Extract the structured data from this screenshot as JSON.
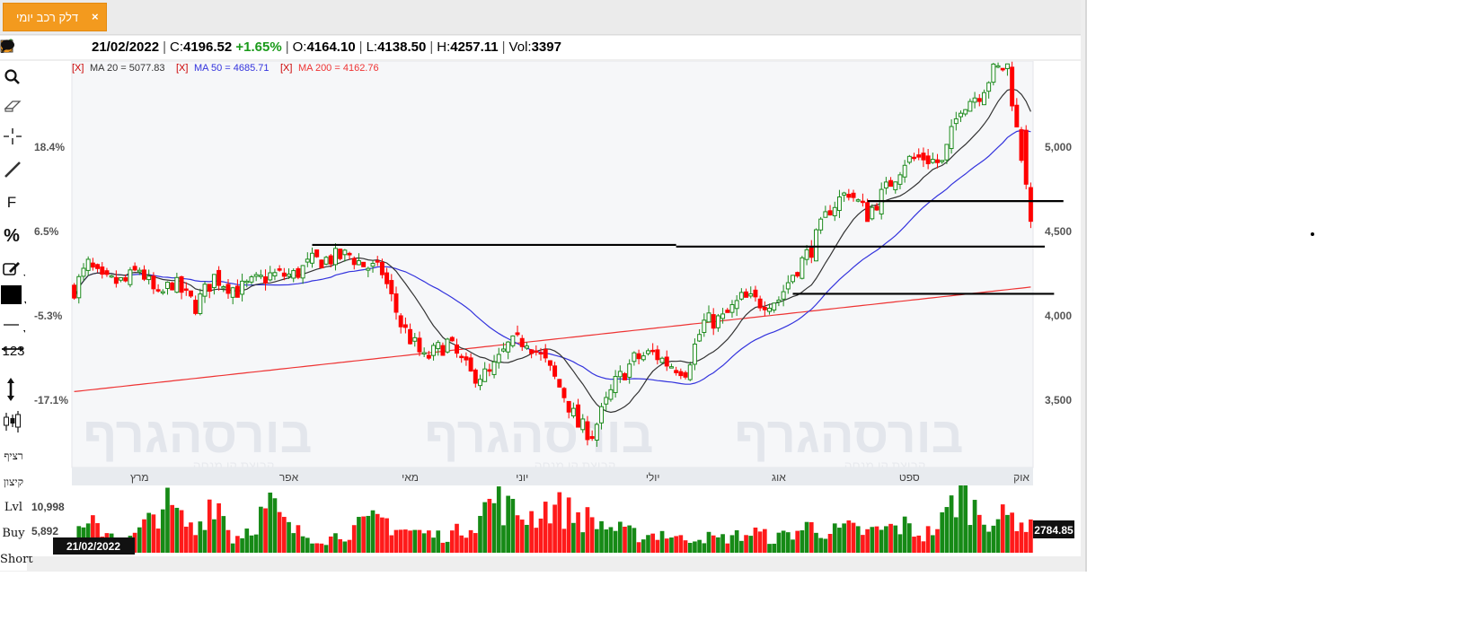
{
  "tab": {
    "label": "דלק רכב יומי",
    "close_symbol": "×"
  },
  "toolbar_icons": [
    "pencil-icon",
    "share-icon",
    "x-box-icon",
    "r-circle-icon",
    "target-icon",
    "chat-icon"
  ],
  "info": {
    "date": "21/02/2022",
    "close_label": "C:",
    "close": "4196.52",
    "change": "+1.65%",
    "open_label": "O:",
    "open": "4164.10",
    "low_label": "L:",
    "low": "4138.50",
    "high_label": "H:",
    "high": "4257.11",
    "vol_label": "Vol:",
    "vol": "3397"
  },
  "side_tools": {
    "numbers": "123",
    "continuous": "רציף",
    "extreme": "קיצון",
    "lvl": "Lvl",
    "buy": "Buy",
    "short": "Short"
  },
  "colors": {
    "up": "#1c8a1c",
    "down": "#ff0000",
    "ma20": "#333333",
    "ma50": "#3333dd",
    "ma200": "#ee3333",
    "accent": "#f39a1e"
  },
  "chart_data": {
    "type": "candlestick",
    "legend": [
      {
        "prefix": "[X]",
        "text": "MA 20 = 5077.83",
        "color": "#333333"
      },
      {
        "prefix": "[X]",
        "text": "MA 50 = 4685.71",
        "color": "#3333dd"
      },
      {
        "prefix": "[X]",
        "text": "MA 200 = 4162.76",
        "color": "#ee3333"
      }
    ],
    "price_ticks": [
      5000,
      4500,
      4000,
      3500
    ],
    "price_tick_labels": [
      "5,000",
      "4,500",
      "4,000",
      "3,500"
    ],
    "pct_ticks": [
      18.4,
      6.5,
      -5.3,
      -17.1
    ],
    "pct_tick_labels": [
      "18.4%",
      "6.5%",
      "-5.3%",
      "-17.1%"
    ],
    "ylim": [
      3100,
      5500
    ],
    "months": [
      {
        "label": "מרץ",
        "index": 14
      },
      {
        "label": "אפר",
        "index": 46
      },
      {
        "label": "מאי",
        "index": 72
      },
      {
        "label": "יוני",
        "index": 96
      },
      {
        "label": "יולי",
        "index": 124
      },
      {
        "label": "אוג",
        "index": 151
      },
      {
        "label": "ספט",
        "index": 179
      },
      {
        "label": "אוק",
        "index": 203
      }
    ],
    "horizontal_lines": [
      {
        "price": 4420,
        "from_index": 51,
        "to_index": 129
      },
      {
        "price": 4410,
        "from_index": 129,
        "to_index": 208
      },
      {
        "price": 4680,
        "from_index": 170,
        "to_index": 212
      },
      {
        "price": 4130,
        "from_index": 154,
        "to_index": 210
      }
    ],
    "volume_ticks": [
      "10,998",
      "5,892"
    ],
    "volume_last": "2784.85",
    "cursor_date": "21/02/2022",
    "watermark": "בורסהגרף",
    "watermark_sub": "קבוצת קו מנחה",
    "anchors": [
      [
        0,
        4160
      ],
      [
        3,
        4300
      ],
      [
        6,
        4200
      ],
      [
        11,
        4200
      ],
      [
        14,
        4280
      ],
      [
        18,
        4100
      ],
      [
        21,
        4200
      ],
      [
        26,
        4060
      ],
      [
        30,
        4230
      ],
      [
        35,
        4150
      ],
      [
        42,
        4240
      ],
      [
        47,
        4240
      ],
      [
        51,
        4320
      ],
      [
        55,
        4340
      ],
      [
        59,
        4360
      ],
      [
        62,
        4300
      ],
      [
        66,
        4260
      ],
      [
        70,
        3950
      ],
      [
        75,
        3740
      ],
      [
        80,
        3840
      ],
      [
        85,
        3650
      ],
      [
        89,
        3650
      ],
      [
        93,
        3820
      ],
      [
        97,
        3860
      ],
      [
        101,
        3720
      ],
      [
        105,
        3530
      ],
      [
        108,
        3350
      ],
      [
        111,
        3300
      ],
      [
        116,
        3600
      ],
      [
        120,
        3740
      ],
      [
        124,
        3780
      ],
      [
        127,
        3720
      ],
      [
        131,
        3680
      ],
      [
        135,
        3960
      ],
      [
        139,
        3980
      ],
      [
        143,
        4100
      ],
      [
        147,
        4080
      ],
      [
        151,
        4100
      ],
      [
        154,
        4250
      ],
      [
        158,
        4400
      ],
      [
        162,
        4640
      ],
      [
        166,
        4740
      ],
      [
        170,
        4600
      ],
      [
        174,
        4750
      ],
      [
        178,
        4920
      ],
      [
        182,
        4940
      ],
      [
        186,
        4900
      ],
      [
        190,
        5250
      ],
      [
        194,
        5320
      ],
      [
        197,
        5450
      ],
      [
        200,
        5480
      ],
      [
        202,
        5100
      ],
      [
        204,
        4800
      ],
      [
        205,
        4570
      ]
    ],
    "vol_anchors": [
      [
        0,
        2.5
      ],
      [
        4,
        4
      ],
      [
        8,
        3
      ],
      [
        12,
        2
      ],
      [
        16,
        4.5
      ],
      [
        19,
        7.5
      ],
      [
        22,
        5.5
      ],
      [
        26,
        3
      ],
      [
        30,
        9
      ],
      [
        34,
        2
      ],
      [
        38,
        4
      ],
      [
        42,
        7
      ],
      [
        46,
        3.5
      ],
      [
        50,
        2.5
      ],
      [
        54,
        2
      ],
      [
        58,
        3
      ],
      [
        62,
        4
      ],
      [
        66,
        5
      ],
      [
        70,
        3.5
      ],
      [
        74,
        3
      ],
      [
        78,
        2.5
      ],
      [
        82,
        3
      ],
      [
        86,
        5
      ],
      [
        90,
        8
      ],
      [
        94,
        6
      ],
      [
        98,
        5.5
      ],
      [
        102,
        7
      ],
      [
        106,
        6
      ],
      [
        110,
        5
      ],
      [
        114,
        4
      ],
      [
        118,
        3
      ],
      [
        122,
        2.5
      ],
      [
        126,
        3
      ],
      [
        130,
        2
      ],
      [
        134,
        2.5
      ],
      [
        138,
        2
      ],
      [
        142,
        2.5
      ],
      [
        146,
        3
      ],
      [
        150,
        2
      ],
      [
        154,
        3
      ],
      [
        158,
        4
      ],
      [
        162,
        3
      ],
      [
        166,
        3.5
      ],
      [
        170,
        3
      ],
      [
        174,
        3.5
      ],
      [
        178,
        4
      ],
      [
        182,
        2.5
      ],
      [
        186,
        4.5
      ],
      [
        190,
        9.5
      ],
      [
        193,
        6.5
      ],
      [
        196,
        5.5
      ],
      [
        199,
        5
      ],
      [
        202,
        5.5
      ],
      [
        205,
        3.5
      ]
    ]
  }
}
